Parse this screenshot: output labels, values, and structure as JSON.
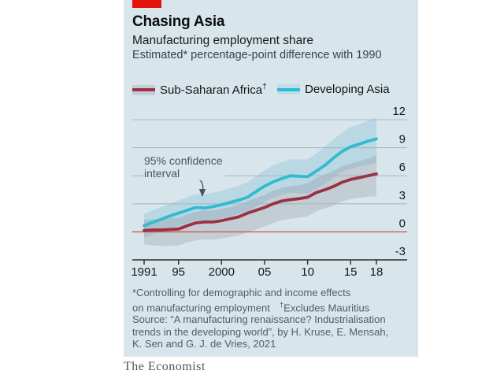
{
  "header": {
    "title": "Chasing Asia",
    "subtitle": "Manufacturing employment share",
    "unit_line": "Estimated* percentage-point difference with 1990"
  },
  "legend": {
    "africa": {
      "label": "Sub-Saharan Africa",
      "dagger": "†"
    },
    "asia": {
      "label": "Developing Asia"
    }
  },
  "annotation": {
    "line1": "95% confidence",
    "line2": "interval"
  },
  "footnotes": {
    "line1": "*Controlling for demographic and income effects",
    "line2_main": "on manufacturing employment",
    "line2_dagger": "†",
    "line2_note": "Excludes Mauritius",
    "source_line1": "Source: “A manufacturing renaissance? Industrialisation",
    "source_line2": "trends in the developing world”, by H. Kruse, E. Mensah,",
    "source_line3": "K. Sen and G. J. de Vries, 2021"
  },
  "brand": "The Economist",
  "colors": {
    "background": "#D8E6EC",
    "red_tab": "#E3120B",
    "asia_line": "#30BCD0",
    "asia_band": "#4FA8C5",
    "africa_line": "#9B3142",
    "africa_band": "#756878",
    "gridline": "#A6B9C1",
    "zero_line": "#CD5A52",
    "axis": "#2B2B2B",
    "annotation": "#44565F"
  },
  "chart_data": {
    "type": "line",
    "title": "Chasing Asia",
    "subtitle": "Manufacturing employment share",
    "ylabel": "Estimated* percentage-point difference with 1990",
    "ylim": [
      -3,
      12
    ],
    "yticks": [
      12,
      9,
      6,
      3,
      0,
      -3
    ],
    "grid": true,
    "zero_baseline_highlighted": true,
    "band_note": "95% confidence interval",
    "legend_position": "top",
    "x": [
      1991,
      1992,
      1993,
      1994,
      1995,
      1996,
      1997,
      1998,
      1999,
      2000,
      2001,
      2002,
      2003,
      2004,
      2005,
      2006,
      2007,
      2008,
      2009,
      2010,
      2011,
      2012,
      2013,
      2014,
      2015,
      2016,
      2017,
      2018
    ],
    "xticks": [
      {
        "year": 1991,
        "label": "1991"
      },
      {
        "year": 1995,
        "label": "95"
      },
      {
        "year": 2000,
        "label": "2000"
      },
      {
        "year": 2005,
        "label": "05"
      },
      {
        "year": 2010,
        "label": "10"
      },
      {
        "year": 2015,
        "label": "15"
      },
      {
        "year": 2018,
        "label": "18"
      }
    ],
    "series": [
      {
        "name": "Sub-Saharan Africa",
        "values": [
          0.15,
          0.2,
          0.2,
          0.25,
          0.3,
          0.65,
          0.95,
          1.05,
          1.05,
          1.2,
          1.4,
          1.6,
          2.0,
          2.3,
          2.6,
          3.0,
          3.3,
          3.45,
          3.55,
          3.7,
          4.2,
          4.5,
          4.85,
          5.3,
          5.6,
          5.8,
          6.0,
          6.2
        ],
        "band_upper": [
          1.3,
          1.35,
          1.4,
          1.45,
          1.5,
          1.85,
          2.15,
          2.3,
          2.3,
          2.45,
          2.65,
          2.9,
          3.3,
          3.6,
          3.95,
          4.4,
          4.7,
          4.9,
          5.0,
          5.2,
          5.75,
          6.1,
          6.5,
          7.0,
          7.3,
          7.55,
          7.8,
          8.2
        ],
        "band_lower": [
          -1.35,
          -1.45,
          -1.5,
          -1.5,
          -1.45,
          -1.15,
          -0.9,
          -0.8,
          -0.85,
          -0.7,
          -0.55,
          -0.4,
          -0.05,
          0.25,
          0.55,
          0.95,
          1.25,
          1.4,
          1.5,
          1.65,
          2.2,
          2.5,
          2.8,
          3.25,
          3.5,
          3.65,
          3.75,
          3.8
        ]
      },
      {
        "name": "Developing Asia",
        "values": [
          0.65,
          1.0,
          1.35,
          1.7,
          2.0,
          2.3,
          2.6,
          2.55,
          2.7,
          2.9,
          3.15,
          3.4,
          3.7,
          4.3,
          4.9,
          5.35,
          5.7,
          6.0,
          5.95,
          5.9,
          6.5,
          7.1,
          7.9,
          8.6,
          9.1,
          9.4,
          9.7,
          9.95
        ],
        "band_upper": [
          1.9,
          2.3,
          2.65,
          3.0,
          3.35,
          3.7,
          4.05,
          4.0,
          4.2,
          4.4,
          4.7,
          4.95,
          5.3,
          5.95,
          6.6,
          7.1,
          7.45,
          7.75,
          7.75,
          7.75,
          8.4,
          9.1,
          9.9,
          10.6,
          11.2,
          11.5,
          11.9,
          12.25
        ],
        "band_lower": [
          -0.6,
          -0.3,
          0.05,
          0.4,
          0.65,
          0.95,
          1.25,
          1.15,
          1.3,
          1.45,
          1.65,
          1.9,
          2.2,
          2.7,
          3.2,
          3.65,
          3.95,
          4.2,
          4.15,
          4.05,
          4.6,
          5.1,
          5.8,
          6.4,
          6.8,
          7.0,
          7.2,
          7.35
        ]
      }
    ]
  }
}
